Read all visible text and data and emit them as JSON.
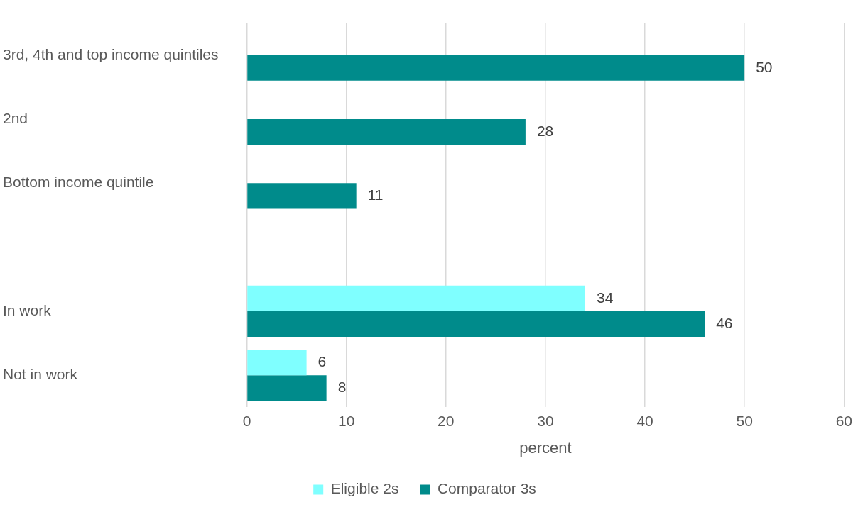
{
  "chart_data": {
    "type": "bar",
    "orientation": "horizontal",
    "xlabel": "percent",
    "categories": [
      "3rd, 4th and top income quintiles",
      "2nd",
      "Bottom income quintile",
      null,
      "In work",
      "Not in work"
    ],
    "series": [
      {
        "name": "Eligible 2s",
        "color": "#7fffff",
        "values": [
          null,
          null,
          null,
          null,
          34,
          6
        ]
      },
      {
        "name": "Comparator 3s",
        "color": "#008b8b",
        "values": [
          50,
          28,
          11,
          null,
          46,
          8
        ]
      }
    ],
    "xlim": [
      0,
      60
    ],
    "xticks": [
      0,
      10,
      20,
      30,
      40,
      50,
      60
    ],
    "grid": "x",
    "legend": "bottom",
    "data_labels": true
  }
}
